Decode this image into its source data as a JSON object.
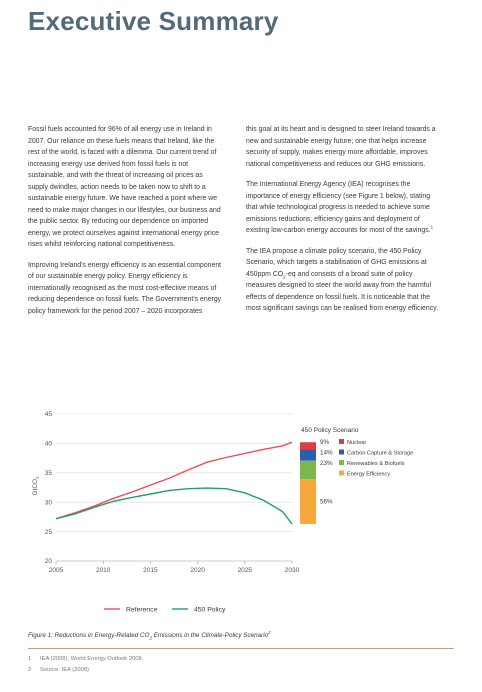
{
  "title": "Executive Summary",
  "left_paragraphs": [
    "Fossil fuels accounted for 96% of all energy use in Ireland in 2007. Our reliance on these fuels means that Ireland, like the rest of the world, is faced with a dilemma. Our current trend of increasing energy use derived from fossil fuels is not sustainable, and with the threat of increasing oil prices as supply dwindles, action needs to be taken now to shift to a sustainable energy future. We have reached a point where we need to make major changes in our lifestyles, our business and the public sector. By reducing our dependence on imported energy, we protect ourselves against international energy price rises whilst reinforcing national competitiveness.",
    "Improving Ireland's energy efficiency is an essential component of our sustainable energy policy. Energy efficiency is internationally recognised as the most cost-effective means of reducing dependence on fossil fuels. The Government's energy policy framework for the period 2007 – 2020 incorporates"
  ],
  "right_paragraphs": [
    "this goal at its heart and is designed to steer Ireland towards a new and sustainable energy future; one that helps increase security of supply, makes energy more affordable, improves national competitiveness and reduces our GHG emissions.",
    "The International Energy Agency (IEA) recognises the importance of energy efficiency (see Figure 1 below), stating that while technological progress is needed to achieve some emissions reductions, efficiency gains and deployment of existing low-carbon energy accounts for most of the savings.",
    "The IEA propose a climate policy scenario, the 450 Policy Scenario, which targets a stabilisation of GHG emissions at 450ppm CO",
    "-eq and consists of a broad suite of policy measures designed to steer the world away from the harmful effects of dependence on fossil fuels. It is noticeable that the most significant savings can be realised from energy efficiency."
  ],
  "sub_2": "2",
  "sup_1": "1",
  "sup_2": "2",
  "chart_data": {
    "type": "line",
    "ylabel_main": "GtCO",
    "ylabel_sub": "2",
    "ylim": [
      20,
      45
    ],
    "yticks": [
      "20",
      "25",
      "30",
      "35",
      "40",
      "45"
    ],
    "xticks": [
      "2005",
      "2010",
      "2015",
      "2020",
      "2025",
      "2030"
    ],
    "xlim": [
      2005,
      2030
    ],
    "series": [
      {
        "name": "Reference",
        "color": "#e8515a",
        "x": [
          2005,
          2007,
          2009,
          2011,
          2013,
          2015,
          2017,
          2019,
          2021,
          2023,
          2025,
          2027,
          2029,
          2030
        ],
        "values": [
          27.2,
          28.2,
          29.3,
          30.6,
          31.7,
          32.9,
          34.1,
          35.5,
          36.8,
          37.6,
          38.3,
          39.0,
          39.6,
          40.2
        ]
      },
      {
        "name": "450 Policy",
        "color": "#1f9e6e",
        "x": [
          2005,
          2007,
          2009,
          2011,
          2013,
          2015,
          2017,
          2019,
          2021,
          2023,
          2025,
          2027,
          2029,
          2030
        ],
        "values": [
          27.2,
          28.0,
          29.1,
          30.1,
          30.8,
          31.4,
          32.0,
          32.3,
          32.4,
          32.3,
          31.6,
          30.3,
          28.4,
          26.3
        ]
      }
    ],
    "stack": {
      "title": "450 Policy Scenario",
      "items": [
        {
          "pct": "9%",
          "label": "Nuclear",
          "color": "#e23b45",
          "value": 9
        },
        {
          "pct": "14%",
          "label": "Carbon Capture & Storage",
          "color": "#2a5fae",
          "value": 14
        },
        {
          "pct": "23%",
          "label": "Renewables & Biofuels",
          "color": "#7fb84a",
          "value": 23
        },
        {
          "pct": "56%",
          "label": "Energy Efficiency",
          "color": "#f6a93a",
          "value": 56
        }
      ]
    }
  },
  "legend": [
    {
      "label": "Reference",
      "color": "#e8515a"
    },
    {
      "label": "450 Policy",
      "color": "#1f9e6e"
    }
  ],
  "caption_pre": "Figure 1: Reductions in Energy-Related CO",
  "caption_post": " Emissions in the Climate-Policy Scenario",
  "footnotes": [
    {
      "num": "1",
      "text": "IEA (2008), World Energy Outlook 2008."
    },
    {
      "num": "2",
      "text": "Source: IEA (2008)"
    }
  ]
}
